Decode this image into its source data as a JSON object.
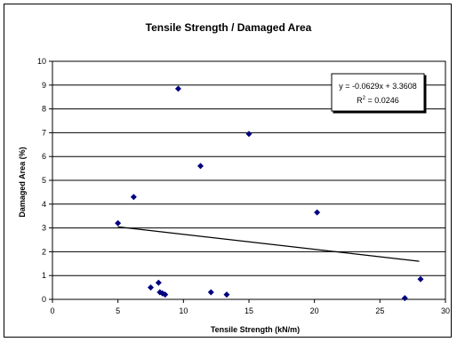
{
  "chart_data": {
    "type": "scatter",
    "title": "Tensile Strength /  Damaged Area",
    "xlabel": "Tensile Strength (kN/m)",
    "ylabel": "Damaged Area (%)",
    "xlim": [
      0,
      30
    ],
    "ylim": [
      0,
      10
    ],
    "xticks": [
      "0",
      "5",
      "10",
      "15",
      "20",
      "25",
      "30"
    ],
    "yticks": [
      "0",
      "1",
      "2",
      "3",
      "4",
      "5",
      "6",
      "7",
      "8",
      "9",
      "10"
    ],
    "grid": "horizontal",
    "marker_color": "#00007f",
    "trendline_color": "#000000",
    "points": [
      {
        "x": 5.0,
        "y": 3.2
      },
      {
        "x": 6.2,
        "y": 4.3
      },
      {
        "x": 7.5,
        "y": 0.5
      },
      {
        "x": 8.1,
        "y": 0.7
      },
      {
        "x": 8.2,
        "y": 0.3
      },
      {
        "x": 8.4,
        "y": 0.25
      },
      {
        "x": 8.6,
        "y": 0.2
      },
      {
        "x": 9.6,
        "y": 8.85
      },
      {
        "x": 11.3,
        "y": 5.6
      },
      {
        "x": 12.1,
        "y": 0.3
      },
      {
        "x": 13.3,
        "y": 0.2
      },
      {
        "x": 15.0,
        "y": 6.95
      },
      {
        "x": 20.2,
        "y": 3.65
      },
      {
        "x": 26.9,
        "y": 0.05
      },
      {
        "x": 28.1,
        "y": 0.85
      }
    ],
    "trendline": {
      "x": [
        5.0,
        28.0
      ],
      "y": [
        3.0463,
        1.5996
      ],
      "equation": "y = -0.0629x + 3.3608",
      "r2_prefix": "R",
      "r2_sup": "2",
      "r2_value": " = 0.0246"
    }
  }
}
